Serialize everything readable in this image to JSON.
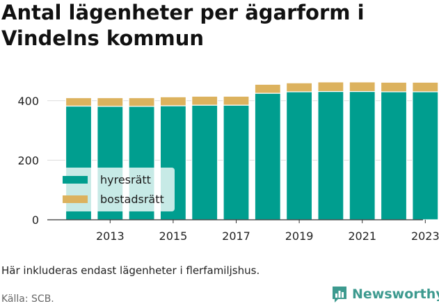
{
  "title": "Antal lägenheter per ägarform i Vindelns kommun",
  "note": "Här inkluderas endast lägenheter i flerfamiljshus.",
  "source": "Källa: SCB.",
  "brand": {
    "name": "Newsworthy",
    "color": "#3d9a8f",
    "icon": "bar-chart-icon"
  },
  "colors": {
    "hyresratt": "#009e8f",
    "bostadsratt": "#dcb25e",
    "grid": "#dcdcdc",
    "axis": "#333333"
  },
  "chart_data": {
    "type": "bar",
    "stacked": true,
    "categories": [
      "2012",
      "2013",
      "2014",
      "2015",
      "2016",
      "2017",
      "2018",
      "2019",
      "2020",
      "2021",
      "2022",
      "2023"
    ],
    "x_tick_labels": [
      "2013",
      "2015",
      "2017",
      "2019",
      "2021",
      "2023"
    ],
    "y_ticks": [
      0,
      200,
      400
    ],
    "ylim": [
      0,
      500
    ],
    "grid": true,
    "legend_position": "lower-left",
    "series": [
      {
        "name": "hyresrätt",
        "color": "#009e8f",
        "values": [
          382,
          381,
          381,
          383,
          385,
          385,
          425,
          430,
          431,
          431,
          430,
          430
        ]
      },
      {
        "name": "bostadsrätt",
        "color": "#dcb25e",
        "values": [
          28,
          29,
          29,
          30,
          30,
          30,
          30,
          30,
          32,
          32,
          32,
          32
        ]
      }
    ]
  }
}
